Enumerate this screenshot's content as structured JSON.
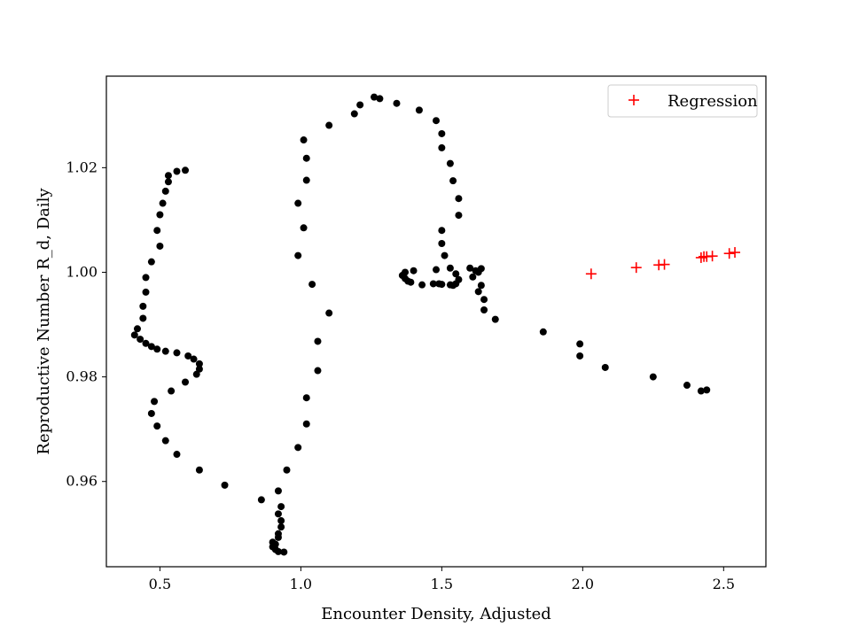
{
  "chart_data": {
    "type": "scatter",
    "title": "",
    "xlabel": "Encounter Density, Adjusted",
    "ylabel": "Reproductive Number R_d, Daily",
    "xlim": [
      0.31,
      2.65
    ],
    "ylim": [
      0.9437,
      1.0375
    ],
    "xticks": [
      0.5,
      1.0,
      1.5,
      2.0,
      2.5
    ],
    "xtick_labels": [
      "0.5",
      "1.0",
      "1.5",
      "2.0",
      "2.5"
    ],
    "yticks": [
      0.96,
      0.98,
      1.0,
      1.02
    ],
    "ytick_labels": [
      "0.96",
      "0.98",
      "1.00",
      "1.02"
    ],
    "grid": false,
    "legend": {
      "placement": "top-right",
      "entries": [
        "Regression"
      ]
    },
    "series": [
      {
        "marker": "dot",
        "color": "#000000",
        "points": [
          [
            0.59,
            1.0195
          ],
          [
            0.56,
            1.0193
          ],
          [
            0.53,
            1.0185
          ],
          [
            0.53,
            1.0173
          ],
          [
            0.52,
            1.0155
          ],
          [
            0.51,
            1.0132
          ],
          [
            0.5,
            1.011
          ],
          [
            0.49,
            1.008
          ],
          [
            0.5,
            1.005
          ],
          [
            0.47,
            1.002
          ],
          [
            0.45,
            0.999
          ],
          [
            0.45,
            0.9962
          ],
          [
            0.44,
            0.9935
          ],
          [
            0.44,
            0.9912
          ],
          [
            0.42,
            0.9892
          ],
          [
            0.41,
            0.988
          ],
          [
            0.43,
            0.9872
          ],
          [
            0.45,
            0.9864
          ],
          [
            0.47,
            0.9858
          ],
          [
            0.49,
            0.9853
          ],
          [
            0.52,
            0.9849
          ],
          [
            0.56,
            0.9846
          ],
          [
            0.6,
            0.984
          ],
          [
            0.62,
            0.9834
          ],
          [
            0.64,
            0.9825
          ],
          [
            0.64,
            0.9815
          ],
          [
            0.63,
            0.9805
          ],
          [
            0.59,
            0.979
          ],
          [
            0.54,
            0.9773
          ],
          [
            0.48,
            0.9753
          ],
          [
            0.47,
            0.973
          ],
          [
            0.49,
            0.9706
          ],
          [
            0.52,
            0.9678
          ],
          [
            0.56,
            0.9652
          ],
          [
            0.64,
            0.9622
          ],
          [
            0.73,
            0.9593
          ],
          [
            0.86,
            0.9565
          ],
          [
            0.92,
            0.9582
          ],
          [
            0.93,
            0.9552
          ],
          [
            0.92,
            0.9538
          ],
          [
            0.93,
            0.9525
          ],
          [
            0.93,
            0.9513
          ],
          [
            0.92,
            0.95
          ],
          [
            0.92,
            0.9493
          ],
          [
            0.9,
            0.9484
          ],
          [
            0.91,
            0.948
          ],
          [
            0.9,
            0.9475
          ],
          [
            0.91,
            0.947
          ],
          [
            0.92,
            0.9466
          ],
          [
            0.94,
            0.9465
          ],
          [
            0.95,
            0.9622
          ],
          [
            0.99,
            0.9665
          ],
          [
            1.02,
            0.971
          ],
          [
            1.02,
            0.976
          ],
          [
            1.06,
            0.9812
          ],
          [
            1.06,
            0.9868
          ],
          [
            1.1,
            0.9922
          ],
          [
            1.04,
            0.9977
          ],
          [
            0.99,
            1.0032
          ],
          [
            1.01,
            1.0085
          ],
          [
            0.99,
            1.0132
          ],
          [
            1.02,
            1.0176
          ],
          [
            1.02,
            1.0218
          ],
          [
            1.01,
            1.0253
          ],
          [
            1.1,
            1.0281
          ],
          [
            1.19,
            1.0303
          ],
          [
            1.21,
            1.032
          ],
          [
            1.26,
            1.0335
          ],
          [
            1.28,
            1.0332
          ],
          [
            1.34,
            1.0323
          ],
          [
            1.42,
            1.031
          ],
          [
            1.48,
            1.029
          ],
          [
            1.5,
            1.0265
          ],
          [
            1.5,
            1.0238
          ],
          [
            1.53,
            1.0208
          ],
          [
            1.54,
            1.0175
          ],
          [
            1.56,
            1.0141
          ],
          [
            1.56,
            1.0109
          ],
          [
            1.5,
            1.008
          ],
          [
            1.5,
            1.0055
          ],
          [
            1.51,
            1.0032
          ],
          [
            1.48,
            1.0005
          ],
          [
            1.53,
            1.0008
          ],
          [
            1.6,
            1.0008
          ],
          [
            1.62,
            1.0003
          ],
          [
            1.64,
            1.0007
          ],
          [
            1.63,
            1.0
          ],
          [
            1.61,
            0.9991
          ],
          [
            1.64,
            0.9975
          ],
          [
            1.63,
            0.9963
          ],
          [
            1.65,
            0.9948
          ],
          [
            1.65,
            0.9928
          ],
          [
            1.69,
            0.991
          ],
          [
            1.4,
            1.0003
          ],
          [
            1.37,
            1.0
          ],
          [
            1.36,
            0.9994
          ],
          [
            1.37,
            0.9988
          ],
          [
            1.38,
            0.9983
          ],
          [
            1.39,
            0.9981
          ],
          [
            1.43,
            0.9976
          ],
          [
            1.47,
            0.9978
          ],
          [
            1.49,
            0.9978
          ],
          [
            1.5,
            0.9977
          ],
          [
            1.53,
            0.9976
          ],
          [
            1.54,
            0.9975
          ],
          [
            1.55,
            0.9978
          ],
          [
            1.56,
            0.9986
          ],
          [
            1.55,
            0.9997
          ],
          [
            1.86,
            0.9886
          ],
          [
            1.99,
            0.9863
          ],
          [
            1.99,
            0.984
          ],
          [
            2.08,
            0.9818
          ],
          [
            2.25,
            0.98
          ],
          [
            2.37,
            0.9784
          ],
          [
            2.42,
            0.9773
          ],
          [
            2.44,
            0.9775
          ]
        ]
      },
      {
        "name": "Regression",
        "marker": "plus",
        "color": "#ff0000",
        "points": [
          [
            2.03,
            0.9997
          ],
          [
            2.19,
            1.0009
          ],
          [
            2.27,
            1.0014
          ],
          [
            2.29,
            1.0015
          ],
          [
            2.42,
            1.0028
          ],
          [
            2.43,
            1.003
          ],
          [
            2.44,
            1.003
          ],
          [
            2.46,
            1.0031
          ],
          [
            2.52,
            1.0036
          ],
          [
            2.54,
            1.0038
          ]
        ]
      }
    ]
  }
}
